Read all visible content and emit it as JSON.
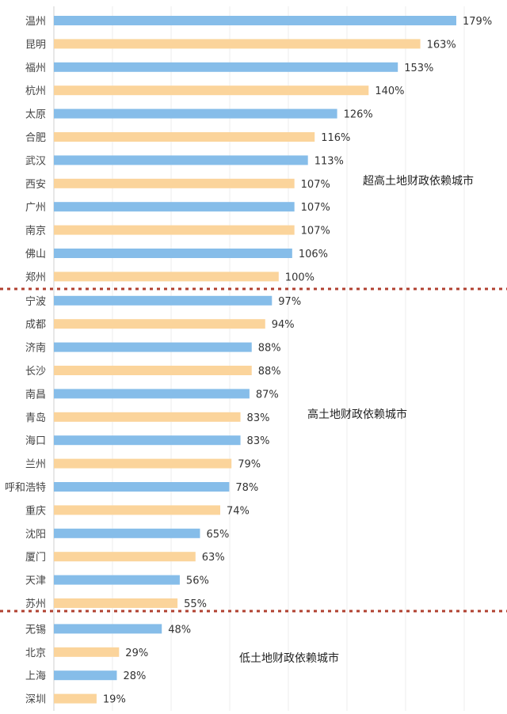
{
  "chart_data": {
    "type": "bar",
    "orientation": "horizontal",
    "value_suffix": "%",
    "colors": {
      "odd": "#86bde9",
      "even": "#fbd49b",
      "divider": "#b04030",
      "axis": "#cfcfcf",
      "grid": "#eeeeee"
    },
    "categories": [
      "温州",
      "昆明",
      "福州",
      "杭州",
      "太原",
      "合肥",
      "武汉",
      "西安",
      "广州",
      "南京",
      "佛山",
      "郑州",
      "宁波",
      "成都",
      "济南",
      "长沙",
      "南昌",
      "青岛",
      "海口",
      "兰州",
      "呼和浩特",
      "重庆",
      "沈阳",
      "厦门",
      "天津",
      "苏州",
      "无锡",
      "北京",
      "上海",
      "深圳"
    ],
    "values": [
      179,
      163,
      153,
      140,
      126,
      116,
      113,
      107,
      107,
      107,
      106,
      100,
      97,
      94,
      88,
      88,
      87,
      83,
      83,
      79,
      78,
      74,
      65,
      63,
      56,
      55,
      48,
      29,
      28,
      19
    ],
    "groups": [
      {
        "label": "超高土地财政依赖城市",
        "start": 0,
        "end": 11
      },
      {
        "label": "高土地财政依赖城市",
        "start": 12,
        "end": 25
      },
      {
        "label": "低土地财政依赖城市",
        "start": 26,
        "end": 29
      }
    ],
    "xlim": [
      0,
      179
    ],
    "grid": true
  }
}
